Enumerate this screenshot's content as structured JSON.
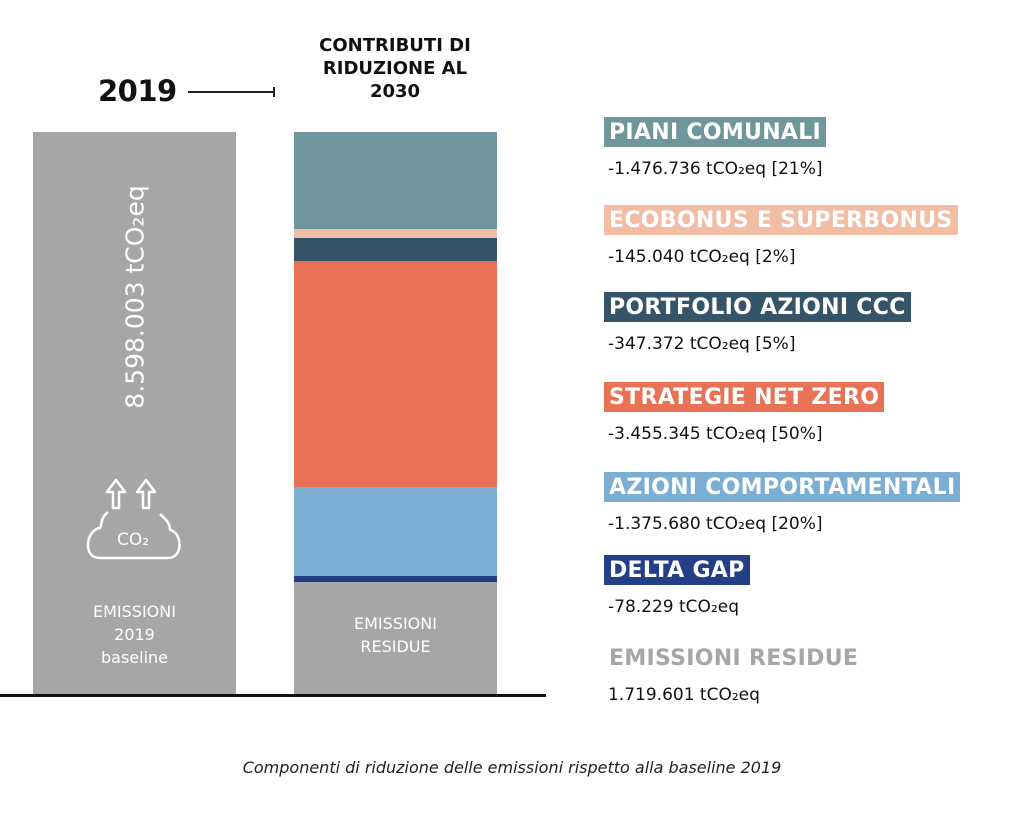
{
  "chart_data": {
    "type": "bar",
    "stacked": true,
    "title": "CONTRIBUTI DI RIDUZIONE AL 2030",
    "year_label": "2019",
    "unit": "tCO₂eq",
    "baseline": {
      "name": "EMISSIONI 2019 baseline",
      "label_lines": [
        "EMISSIONI",
        "2019",
        "baseline"
      ],
      "value": 8598003,
      "value_label": "8.598.003 tCO₂eq",
      "color": "#a6a6a6",
      "icon": "co2-cloud-icon",
      "icon_text": "CO₂"
    },
    "series": [
      {
        "name": "PIANI COMUNALI",
        "value": -1476736,
        "value_label": "-1.476.736 tCO₂eq [21%]",
        "share_pct": 21,
        "color": "#6e969c"
      },
      {
        "name": "ECOBONUS E SUPERBONUS",
        "value": -145040,
        "value_label": "-145.040 tCO₂eq [2%]",
        "share_pct": 2,
        "color": "#f2bda5"
      },
      {
        "name": "PORTFOLIO AZIONI CCC",
        "value": -347372,
        "value_label": "-347.372 tCO₂eq [5%]",
        "share_pct": 5,
        "color": "#355467"
      },
      {
        "name": "STRATEGIE NET ZERO",
        "value": -3455345,
        "value_label": "-3.455.345 tCO₂eq [50%]",
        "share_pct": 50,
        "color": "#e97256"
      },
      {
        "name": "AZIONI COMPORTAMENTALI",
        "value": -1375680,
        "value_label": "-1.375.680 tCO₂eq [20%]",
        "share_pct": 20,
        "color": "#7aaed3"
      },
      {
        "name": "DELTA GAP",
        "value": -78229,
        "value_label": "-78.229 tCO₂eq",
        "color": "#233f85"
      },
      {
        "name": "EMISSIONI RESIDUE",
        "value": 1719601,
        "value_label": "1.719.601 tCO₂eq",
        "color": "#a6a6a6"
      }
    ],
    "residual_bar_label_lines": [
      "EMISSIONI",
      "RESIDUE"
    ],
    "caption": "Componenti di riduzione delle emissioni rispetto alla baseline 2019"
  }
}
